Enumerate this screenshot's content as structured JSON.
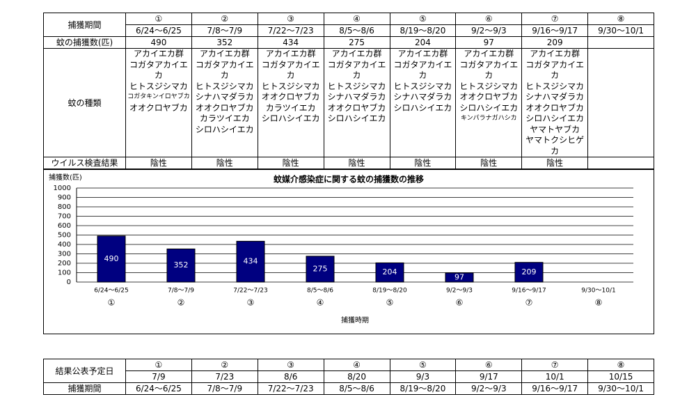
{
  "survey_table": {
    "period_header": "捕獲期間",
    "count_header": "蚊の捕獲数(匹)",
    "species_header": "蚊の種類",
    "virus_header": "ウイルス検査結果",
    "columns": [
      {
        "no": "①",
        "period": "6/24～6/25",
        "count": 490,
        "species": [
          "アカイエカ群",
          "コガタアカイエカ",
          "ヒトスジシマカ",
          "コガタキンイロヤブカ",
          "オオクロヤブカ"
        ],
        "virus": "陰性"
      },
      {
        "no": "②",
        "period": "7/8～7/9",
        "count": 352,
        "species": [
          "アカイエカ群",
          "コガタアカイエカ",
          "ヒトスジシマカ",
          "シナハマダラカ",
          "オオクロヤブカ",
          "カラツイエカ",
          "シロハシイエカ"
        ],
        "virus": "陰性"
      },
      {
        "no": "③",
        "period": "7/22～7/23",
        "count": 434,
        "species": [
          "アカイエカ群",
          "コガタアカイエカ",
          "ヒトスジシマカ",
          "オオクロヤブカ",
          "カラツイエカ",
          "シロハシイエカ"
        ],
        "virus": "陰性"
      },
      {
        "no": "④",
        "period": "8/5～8/6",
        "count": 275,
        "species": [
          "アカイエカ群",
          "コガタアカイエカ",
          "ヒトスジシマカ",
          "シナハマダラカ",
          "オオクロヤブカ",
          "シロハシイエカ"
        ],
        "virus": "陰性"
      },
      {
        "no": "⑤",
        "period": "8/19～8/20",
        "count": 204,
        "species": [
          "アカイエカ群",
          "コガタアカイエカ",
          "ヒトスジシマカ",
          "シナハマダラカ",
          "シロハシイエカ"
        ],
        "virus": "陰性"
      },
      {
        "no": "⑥",
        "period": "9/2～9/3",
        "count": 97,
        "species": [
          "アカイエカ群",
          "コガタアカイエカ",
          "ヒトスジシマカ",
          "オオクロヤブカ",
          "シロハシイエカ",
          "キンパラナガハシカ"
        ],
        "virus": "陰性"
      },
      {
        "no": "⑦",
        "period": "9/16～9/17",
        "count": 209,
        "species": [
          "アカイエカ群",
          "コガタアカイエカ",
          "ヒトスジシマカ",
          "シナハマダラカ",
          "オオクロヤブカ",
          "シロハシイエカ",
          "ヤマトヤブカ",
          "ヤマトクシヒゲカ"
        ],
        "virus": "陰性"
      },
      {
        "no": "⑧",
        "period": "9/30～10/1"
      }
    ]
  },
  "chart_data": {
    "type": "bar",
    "title": "蚊媒介感染症に関する蚊の捕獲数の推移",
    "y_label": "捕獲数(匹)",
    "x_label": "捕獲時期",
    "categories": [
      "6/24～6/25",
      "7/8～7/9",
      "7/22～7/23",
      "8/5～8/6",
      "8/19～8/20",
      "9/2～9/3",
      "9/16～9/17",
      "9/30～10/1"
    ],
    "category_numbers": [
      "①",
      "②",
      "③",
      "④",
      "⑤",
      "⑥",
      "⑦",
      "⑧"
    ],
    "values": [
      490,
      352,
      434,
      275,
      204,
      97,
      209,
      null
    ],
    "color": "#000080",
    "ylim": [
      0,
      1000
    ],
    "yticks": [
      0,
      100,
      200,
      300,
      400,
      500,
      600,
      700,
      800,
      900,
      1000
    ],
    "grid": true
  },
  "schedule_table": {
    "date_header": "結果公表予定日",
    "period_header": "捕獲期間",
    "columns": [
      {
        "no": "①",
        "date": "7/9",
        "period": "6/24～6/25"
      },
      {
        "no": "②",
        "date": "7/23",
        "period": "7/8～7/9"
      },
      {
        "no": "③",
        "date": "8/6",
        "period": "7/22～7/23"
      },
      {
        "no": "④",
        "date": "8/20",
        "period": "8/5～8/6"
      },
      {
        "no": "⑤",
        "date": "9/3",
        "period": "8/19～8/20"
      },
      {
        "no": "⑥",
        "date": "9/17",
        "period": "9/2～9/3"
      },
      {
        "no": "⑦",
        "date": "10/1",
        "period": "9/16～9/17"
      },
      {
        "no": "⑧",
        "date": "10/15",
        "period": "9/30～10/1"
      }
    ]
  }
}
